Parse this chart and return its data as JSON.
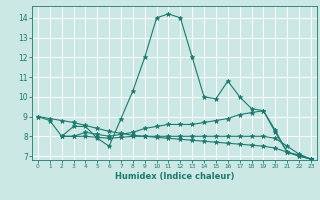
{
  "xlabel": "Humidex (Indice chaleur)",
  "bg_color": "#cce8e4",
  "grid_color": "#ffffff",
  "line_color": "#1a7a6e",
  "xlim": [
    -0.5,
    23.5
  ],
  "ylim": [
    6.8,
    14.6
  ],
  "yticks": [
    7,
    8,
    9,
    10,
    11,
    12,
    13,
    14
  ],
  "xticks": [
    0,
    1,
    2,
    3,
    4,
    5,
    6,
    7,
    8,
    9,
    10,
    11,
    12,
    13,
    14,
    15,
    16,
    17,
    18,
    19,
    20,
    21,
    22,
    23
  ],
  "series": [
    {
      "x": [
        0,
        1,
        2,
        3,
        4,
        5,
        6,
        7,
        8,
        9,
        10,
        11,
        12,
        13,
        14,
        15,
        16,
        17,
        18,
        19,
        20,
        21,
        22,
        23
      ],
      "y": [
        9.0,
        8.8,
        8.0,
        8.5,
        8.5,
        7.9,
        7.5,
        8.9,
        10.3,
        12.0,
        14.0,
        14.2,
        14.0,
        12.0,
        10.0,
        9.9,
        10.8,
        10.0,
        9.4,
        9.3,
        8.3,
        7.2,
        7.0,
        6.85
      ]
    },
    {
      "x": [
        2,
        3,
        4,
        5,
        6,
        7,
        8,
        9,
        10,
        11,
        12,
        13,
        14,
        15,
        16,
        17,
        18,
        19,
        20,
        21,
        22,
        23
      ],
      "y": [
        8.0,
        8.0,
        8.2,
        8.1,
        8.0,
        8.1,
        8.2,
        8.4,
        8.5,
        8.6,
        8.6,
        8.6,
        8.7,
        8.8,
        8.9,
        9.1,
        9.2,
        9.3,
        8.2,
        7.2,
        7.0,
        6.85
      ]
    },
    {
      "x": [
        2,
        3,
        4,
        5,
        6,
        7,
        8,
        9,
        10,
        11,
        12,
        13,
        14,
        15,
        16,
        17,
        18,
        19,
        20,
        21,
        22,
        23
      ],
      "y": [
        8.0,
        8.0,
        8.0,
        7.95,
        7.9,
        7.95,
        8.0,
        8.0,
        8.0,
        8.0,
        8.0,
        8.0,
        8.0,
        8.0,
        8.0,
        8.0,
        8.0,
        8.0,
        7.9,
        7.5,
        7.1,
        6.85
      ]
    },
    {
      "x": [
        0,
        1,
        2,
        3,
        4,
        5,
        6,
        7,
        8,
        9,
        10,
        11,
        12,
        13,
        14,
        15,
        16,
        17,
        18,
        19,
        20,
        21,
        22,
        23
      ],
      "y": [
        9.0,
        8.9,
        8.8,
        8.7,
        8.55,
        8.4,
        8.25,
        8.15,
        8.05,
        8.0,
        7.95,
        7.9,
        7.85,
        7.8,
        7.75,
        7.7,
        7.65,
        7.6,
        7.55,
        7.5,
        7.4,
        7.2,
        7.05,
        6.85
      ]
    }
  ]
}
